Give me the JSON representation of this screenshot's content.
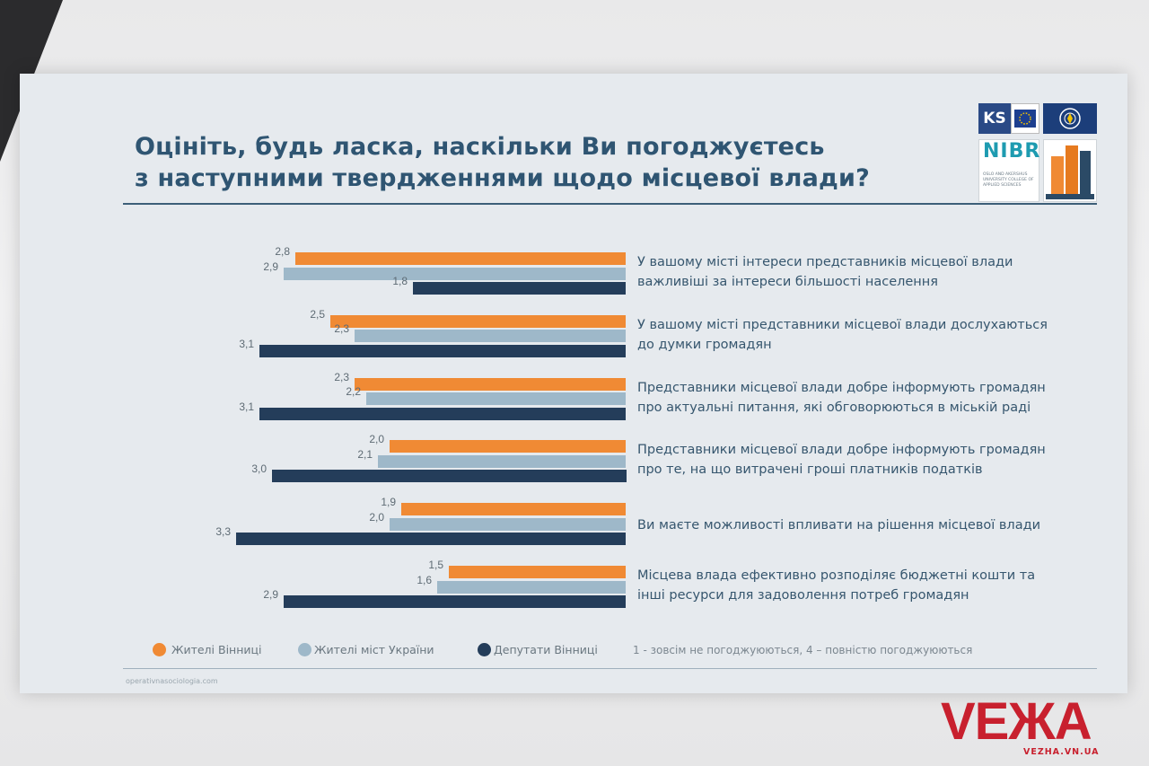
{
  "slide": {
    "title_line1": "Оцініть, будь ласка, наскільки Ви погоджуєтесь",
    "title_line2": "з наступними твердженнями щодо місцевої влади?",
    "logos": {
      "ks_text": "KS",
      "nibr_text": "NIBR",
      "nibr_fine": "OSLO AND AKERSHUS UNIVERSITY COLLEGE OF APPLIED SCIENCES",
      "os_caption": "ОПЕРАТИВНА СОЦІОЛОГІЯ"
    },
    "footer_url": "operativnasociologia.com"
  },
  "chart_data": {
    "type": "bar",
    "orientation": "horizontal",
    "categories": [
      [
        "У вашому місті інтереси представників місцевої влади",
        "важливіші за інтереси більшості населення"
      ],
      [
        "У вашому місті представники місцевої влади дослухаються",
        "до думки громадян"
      ],
      [
        "Представники місцевої влади добре інформують громадян",
        "про актуальні питання, які обговорюються в міській раді"
      ],
      [
        "Представники місцевої влади добре інформують громадян",
        "про те, на що витрачені гроші платників податків"
      ],
      [
        "Ви маєте можливості впливати на рішення місцевої влади"
      ],
      [
        "Місцева влада ефективно розподіляє бюджетні кошти та",
        "інші ресурси для задоволення потреб громадян"
      ]
    ],
    "series": [
      {
        "name": "Жителі Вінниці",
        "color": "#f08a34",
        "values": [
          2.8,
          2.5,
          2.3,
          2.0,
          1.9,
          1.5
        ],
        "labels": [
          "2,8",
          "2,5",
          "2,3",
          "2,0",
          "1,9",
          "1,5"
        ]
      },
      {
        "name": "Жителі міст України",
        "color": "#9eb8c9",
        "values": [
          2.9,
          2.3,
          2.2,
          2.1,
          2.0,
          1.6
        ],
        "labels": [
          "2,9",
          "2,3",
          "2,2",
          "2,1",
          "2,0",
          "1,6"
        ]
      },
      {
        "name": "Депутати Вінниці",
        "color": "#243d5a",
        "values": [
          1.8,
          3.1,
          3.1,
          3.0,
          3.3,
          2.9
        ],
        "labels": [
          "1,8",
          "3,1",
          "3,1",
          "3,0",
          "3,3",
          "2,9"
        ]
      }
    ],
    "scale_note": "1 - зовсім не погоджуюються,    4 – повністю погоджуюються",
    "legend_position": "bottom",
    "grid": false
  },
  "watermark": {
    "word": "VEЖA",
    "url": "VEZHA.VN.UA"
  }
}
